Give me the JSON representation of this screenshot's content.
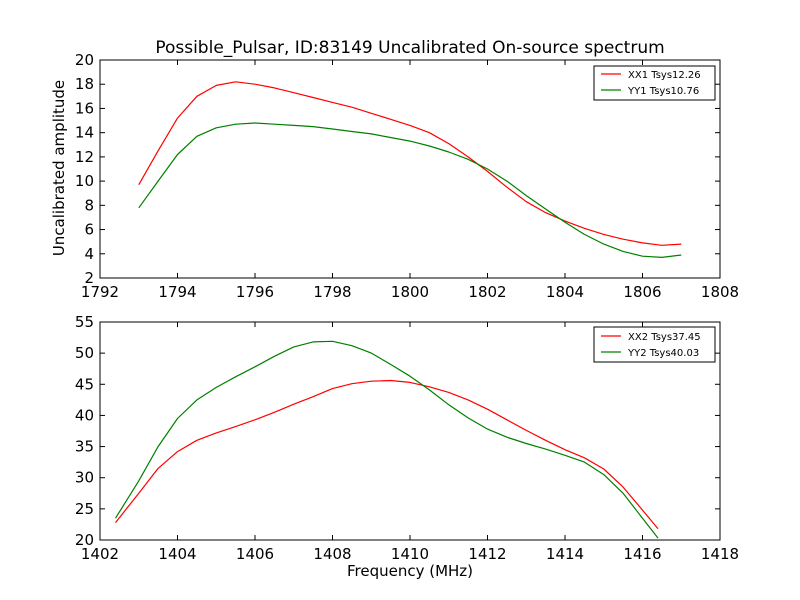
{
  "chart_data": [
    {
      "type": "line",
      "title": "Possible_Pulsar, ID:83149 Uncalibrated On-source spectrum",
      "xlabel": "",
      "ylabel": "Uncalibrated amplitude",
      "xlim": [
        1792,
        1808
      ],
      "ylim": [
        2,
        20
      ],
      "xticks": [
        1792,
        1794,
        1796,
        1798,
        1800,
        1802,
        1804,
        1806,
        1808
      ],
      "yticks": [
        2,
        4,
        6,
        8,
        10,
        12,
        14,
        16,
        18,
        20
      ],
      "grid": false,
      "legend": "top-right",
      "series": [
        {
          "name": "XX1 Tsys12.26",
          "color": "#ff0000",
          "x": [
            1793.0,
            1793.5,
            1794.0,
            1794.5,
            1795.0,
            1795.5,
            1796.0,
            1796.5,
            1797.0,
            1797.5,
            1798.0,
            1798.5,
            1799.0,
            1799.5,
            1800.0,
            1800.5,
            1801.0,
            1801.5,
            1802.0,
            1802.5,
            1803.0,
            1803.5,
            1804.0,
            1804.5,
            1805.0,
            1805.5,
            1806.0,
            1806.5,
            1807.0
          ],
          "y": [
            9.7,
            12.5,
            15.2,
            17.0,
            17.9,
            18.2,
            18.0,
            17.7,
            17.3,
            16.9,
            16.5,
            16.1,
            15.6,
            15.1,
            14.6,
            14.0,
            13.1,
            12.0,
            10.8,
            9.5,
            8.3,
            7.4,
            6.7,
            6.1,
            5.6,
            5.2,
            4.9,
            4.7,
            4.8
          ]
        },
        {
          "name": "YY1 Tsys10.76",
          "color": "#008000",
          "x": [
            1793.0,
            1793.5,
            1794.0,
            1794.5,
            1795.0,
            1795.5,
            1796.0,
            1796.5,
            1797.0,
            1797.5,
            1798.0,
            1798.5,
            1799.0,
            1799.5,
            1800.0,
            1800.5,
            1801.0,
            1801.5,
            1802.0,
            1802.5,
            1803.0,
            1803.5,
            1804.0,
            1804.5,
            1805.0,
            1805.5,
            1806.0,
            1806.5,
            1807.0
          ],
          "y": [
            7.8,
            10.0,
            12.2,
            13.7,
            14.4,
            14.7,
            14.8,
            14.7,
            14.6,
            14.5,
            14.3,
            14.1,
            13.9,
            13.6,
            13.3,
            12.9,
            12.4,
            11.8,
            11.0,
            10.0,
            8.8,
            7.7,
            6.6,
            5.6,
            4.8,
            4.2,
            3.8,
            3.7,
            3.9
          ]
        }
      ]
    },
    {
      "type": "line",
      "title": "",
      "xlabel": "Frequency (MHz)",
      "ylabel": "",
      "xlim": [
        1402,
        1418
      ],
      "ylim": [
        20,
        55
      ],
      "xticks": [
        1402,
        1404,
        1406,
        1408,
        1410,
        1412,
        1414,
        1416,
        1418
      ],
      "yticks": [
        20,
        25,
        30,
        35,
        40,
        45,
        50,
        55
      ],
      "grid": false,
      "legend": "top-right",
      "series": [
        {
          "name": "XX2 Tsys37.45",
          "color": "#ff0000",
          "x": [
            1402.4,
            1403.0,
            1403.5,
            1404.0,
            1404.5,
            1405.0,
            1405.5,
            1406.0,
            1406.5,
            1407.0,
            1407.5,
            1408.0,
            1408.5,
            1409.0,
            1409.5,
            1410.0,
            1410.5,
            1411.0,
            1411.5,
            1412.0,
            1412.5,
            1413.0,
            1413.5,
            1414.0,
            1414.5,
            1415.0,
            1415.5,
            1416.0,
            1416.4
          ],
          "y": [
            22.8,
            27.5,
            31.5,
            34.2,
            36.0,
            37.2,
            38.2,
            39.3,
            40.5,
            41.8,
            43.0,
            44.3,
            45.1,
            45.5,
            45.6,
            45.3,
            44.6,
            43.7,
            42.5,
            41.0,
            39.3,
            37.6,
            36.0,
            34.5,
            33.2,
            31.4,
            28.5,
            24.8,
            21.8
          ]
        },
        {
          "name": "YY2 Tsys40.03",
          "color": "#008000",
          "x": [
            1402.4,
            1403.0,
            1403.5,
            1404.0,
            1404.5,
            1405.0,
            1405.5,
            1406.0,
            1406.5,
            1407.0,
            1407.5,
            1408.0,
            1408.5,
            1409.0,
            1409.5,
            1410.0,
            1410.5,
            1411.0,
            1411.5,
            1412.0,
            1412.5,
            1413.0,
            1413.5,
            1414.0,
            1414.5,
            1415.0,
            1415.5,
            1416.0,
            1416.4
          ],
          "y": [
            23.5,
            29.5,
            35.0,
            39.5,
            42.5,
            44.5,
            46.2,
            47.8,
            49.5,
            51.0,
            51.8,
            51.9,
            51.2,
            50.0,
            48.2,
            46.3,
            44.1,
            41.7,
            39.6,
            37.8,
            36.5,
            35.5,
            34.6,
            33.6,
            32.5,
            30.5,
            27.5,
            23.5,
            20.3
          ]
        }
      ]
    }
  ]
}
